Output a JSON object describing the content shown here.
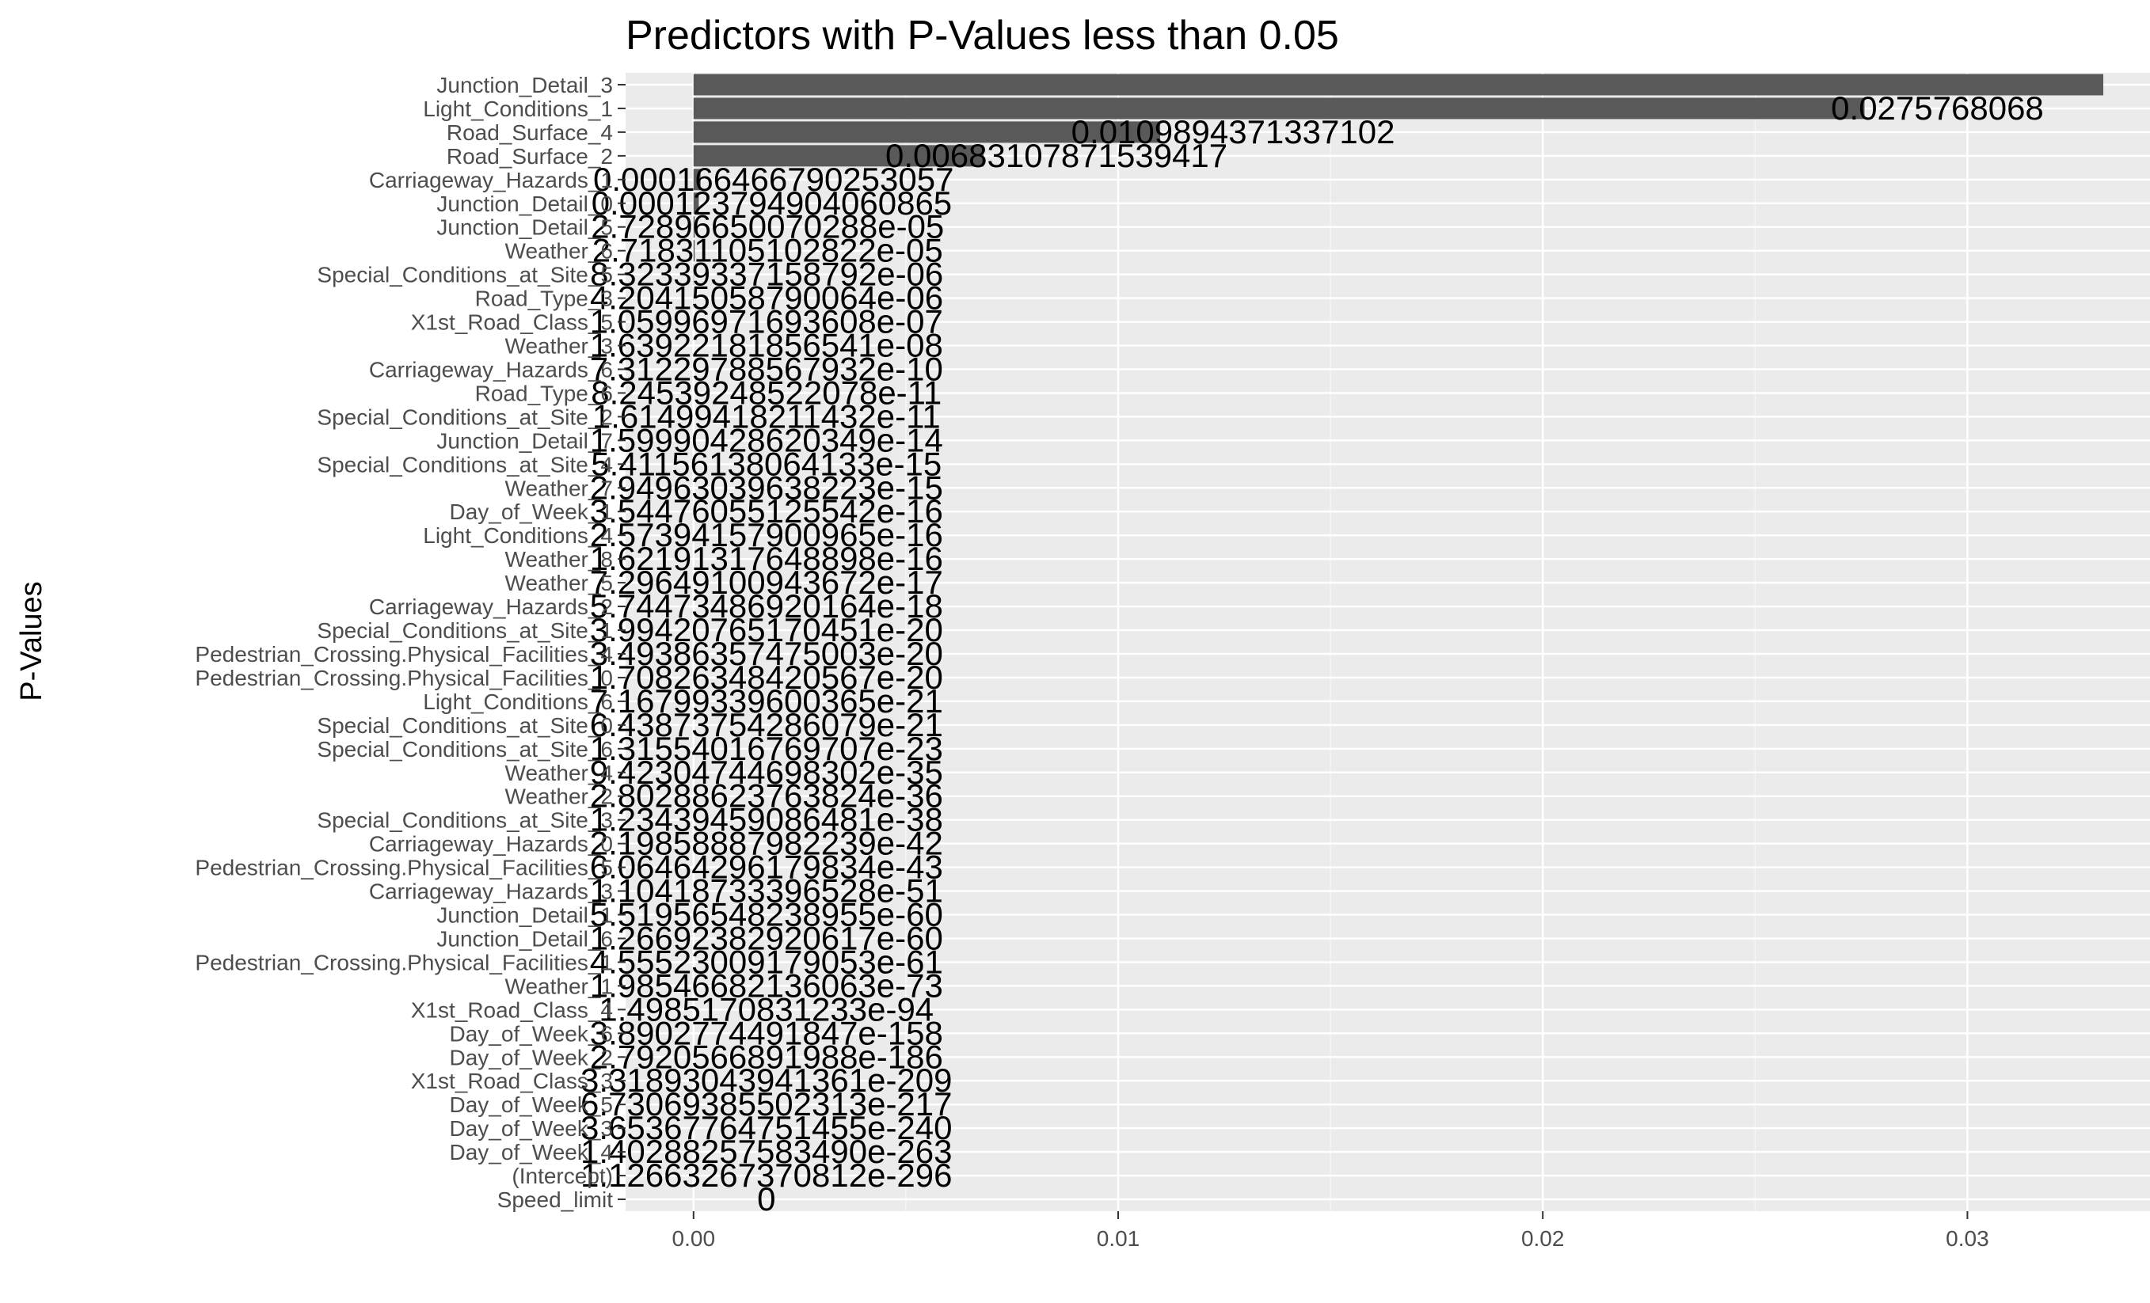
{
  "chart_data": {
    "type": "bar",
    "orientation": "horizontal",
    "title": "Predictors with P-Values less than 0.05",
    "xlabel": "",
    "ylabel": "P-Values",
    "xlim": [
      -0.0016,
      0.0343
    ],
    "x_ticks": [
      {
        "value": 0.0,
        "label": "0.00"
      },
      {
        "value": 0.01,
        "label": "0.01"
      },
      {
        "value": 0.02,
        "label": "0.02"
      },
      {
        "value": 0.03,
        "label": "0.03"
      }
    ],
    "grid": true,
    "legend": "none",
    "colors": {
      "bar": "#595959",
      "panel": "#ebebeb",
      "grid_major": "#ffffff",
      "grid_minor": "#f5f5f5"
    },
    "bars": [
      {
        "category": "Junction_Detail_3",
        "value": 0.0332,
        "label": ""
      },
      {
        "category": "Light_Conditions_1",
        "value": 0.0275768068,
        "label": "0.0275768068"
      },
      {
        "category": "Road_Surface_4",
        "value": 0.0109894371337102,
        "label": "0.0109894371337102"
      },
      {
        "category": "Road_Surface_2",
        "value": 0.00683107871539417,
        "label": "0.00683107871539417"
      },
      {
        "category": "Carriageway_Hazards_1",
        "value": 0.000166466790253057,
        "label": "0.000166466790253057"
      },
      {
        "category": "Junction_Detail_0",
        "value": 0.000123794904060865,
        "label": "0.000123794904060865"
      },
      {
        "category": "Junction_Detail_5",
        "value": 2.72896650070288e-05,
        "label": "2.72896650070288e-05"
      },
      {
        "category": "Weather_6",
        "value": 2.71831105102822e-05,
        "label": "2.71831105102822e-05"
      },
      {
        "category": "Special_Conditions_at_Site_5",
        "value": 8.32339337158792e-06,
        "label": "8.32339337158792e-06"
      },
      {
        "category": "Road_Type_3",
        "value": 4.20415058790064e-06,
        "label": "4.20415058790064e-06"
      },
      {
        "category": "X1st_Road_Class_5",
        "value": 1.05996971693608e-07,
        "label": "1.05996971693608e-07"
      },
      {
        "category": "Weather_3",
        "value": 1.63922181856541e-08,
        "label": "1.63922181856541e-08"
      },
      {
        "category": "Carriageway_Hazards_6",
        "value": 7.31229788567932e-10,
        "label": "7.31229788567932e-10"
      },
      {
        "category": "Road_Type_6",
        "value": 8.24539248522078e-11,
        "label": "8.24539248522078e-11"
      },
      {
        "category": "Special_Conditions_at_Site_2",
        "value": 1.61499418211432e-11,
        "label": "1.61499418211432e-11"
      },
      {
        "category": "Junction_Detail_7",
        "value": 1.59990428620349e-14,
        "label": "1.59990428620349e-14"
      },
      {
        "category": "Special_Conditions_at_Site_4",
        "value": 5.41156138064133e-15,
        "label": "5.41156138064133e-15"
      },
      {
        "category": "Weather_7",
        "value": 2.94963039638223e-15,
        "label": "2.94963039638223e-15"
      },
      {
        "category": "Day_of_Week_1",
        "value": 3.54476055125542e-16,
        "label": "3.54476055125542e-16"
      },
      {
        "category": "Light_Conditions_4",
        "value": 2.57394157900965e-16,
        "label": "2.57394157900965e-16"
      },
      {
        "category": "Weather_8",
        "value": 1.62191317648898e-16,
        "label": "1.62191317648898e-16"
      },
      {
        "category": "Weather_5",
        "value": 7.29649100943672e-17,
        "label": "7.29649100943672e-17"
      },
      {
        "category": "Carriageway_Hazards_2",
        "value": 5.74473486920164e-18,
        "label": "5.74473486920164e-18"
      },
      {
        "category": "Special_Conditions_at_Site_1",
        "value": 3.99420765170451e-20,
        "label": "3.99420765170451e-20"
      },
      {
        "category": "Pedestrian_Crossing.Physical_Facilities_4",
        "value": 3.49386357475003e-20,
        "label": "3.49386357475003e-20"
      },
      {
        "category": "Pedestrian_Crossing.Physical_Facilities_0",
        "value": 1.70826348420567e-20,
        "label": "1.70826348420567e-20"
      },
      {
        "category": "Light_Conditions_6",
        "value": 7.16799339600365e-21,
        "label": "7.16799339600365e-21"
      },
      {
        "category": "Special_Conditions_at_Site_0",
        "value": 6.43873754286079e-21,
        "label": "6.43873754286079e-21"
      },
      {
        "category": "Special_Conditions_at_Site_6",
        "value": 1.31554016769707e-23,
        "label": "1.31554016769707e-23"
      },
      {
        "category": "Weather_4",
        "value": 9.42304744698302e-35,
        "label": "9.42304744698302e-35"
      },
      {
        "category": "Weather_2",
        "value": 2.80288623763824e-36,
        "label": "2.80288623763824e-36"
      },
      {
        "category": "Special_Conditions_at_Site_3",
        "value": 1.23439459086481e-38,
        "label": "1.23439459086481e-38"
      },
      {
        "category": "Carriageway_Hazards_0",
        "value": 2.19858887982239e-42,
        "label": "2.19858887982239e-42"
      },
      {
        "category": "Pedestrian_Crossing.Physical_Facilities_5",
        "value": 6.06464296179834e-43,
        "label": "6.06464296179834e-43"
      },
      {
        "category": "Carriageway_Hazards_3",
        "value": 1.10418733396528e-51,
        "label": "1.10418733396528e-51"
      },
      {
        "category": "Junction_Detail_1",
        "value": 5.51956548238955e-60,
        "label": "5.51956548238955e-60"
      },
      {
        "category": "Junction_Detail_6",
        "value": 1.26692382920617e-60,
        "label": "1.26692382920617e-60"
      },
      {
        "category": "Pedestrian_Crossing.Physical_Facilities_1",
        "value": 4.55523009179053e-61,
        "label": "4.55523009179053e-61"
      },
      {
        "category": "Weather_1",
        "value": 1.98546682136063e-73,
        "label": "1.98546682136063e-73"
      },
      {
        "category": "X1st_Road_Class_4",
        "value": 1.4985170831233e-94,
        "label": "1.4985170831233e-94"
      },
      {
        "category": "Day_of_Week_6",
        "value": 3.8902774491847e-158,
        "label": "3.8902774491847e-158"
      },
      {
        "category": "Day_of_Week_2",
        "value": 2.7920566891988e-186,
        "label": "2.7920566891988e-186"
      },
      {
        "category": "X1st_Road_Class_3",
        "value": 3.31893043941361e-209,
        "label": "3.31893043941361e-209"
      },
      {
        "category": "Day_of_Week_5",
        "value": 6.73069385502313e-217,
        "label": "6.73069385502313e-217"
      },
      {
        "category": "Day_of_Week_3",
        "value": 3.65367764751455e-240,
        "label": "3.65367764751455e-240"
      },
      {
        "category": "Day_of_Week_4",
        "value": 1.4028825758349e-263,
        "label": "1.40288257583490e-263"
      },
      {
        "category": "(Intercept)",
        "value": 1.12663267370812e-296,
        "label": "1.12663267370812e-296"
      },
      {
        "category": "Speed_limit",
        "value": 0,
        "label": "0"
      }
    ]
  }
}
